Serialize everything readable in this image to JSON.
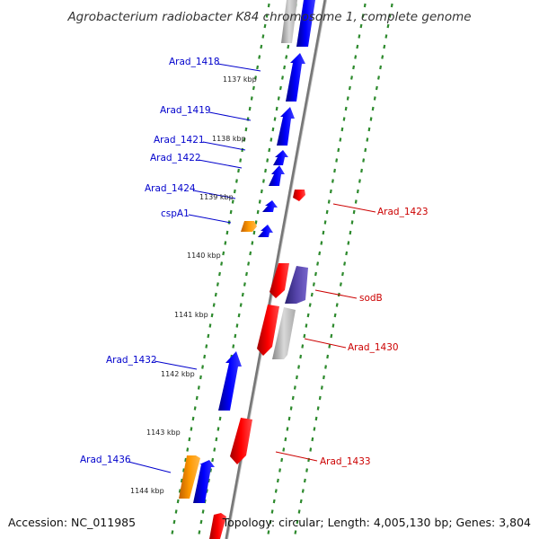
{
  "title": "Agrobacterium radiobacter K84 chromosome 1, complete genome",
  "accession": "Accession: NC_011985",
  "topology": "Topology: circular; Length: 4,005,130 bp; Genes: 3,804",
  "colors": {
    "forward_label": "#0000cc",
    "reverse_label": "#cc0000",
    "forward_cds": "#0000ff",
    "reverse_cds": "#ff0000",
    "rna_or_other": "#ff9900",
    "pseudo": "#b0b0b0",
    "special": "#5544aa",
    "tick": "#2d8a2d",
    "backbone": "#888888"
  },
  "kbp_markers": [
    "1137 kbp",
    "1138 kbp",
    "1139 kbp",
    "1140 kbp",
    "1141 kbp",
    "1142 kbp",
    "1143 kbp",
    "1144 kbp"
  ],
  "forward_labels": [
    "Arad_1418",
    "Arad_1419",
    "Arad_1421",
    "Arad_1422",
    "Arad_1424",
    "cspA1",
    "Arad_1432",
    "Arad_1436"
  ],
  "reverse_labels": [
    "Arad_1423",
    "sodB",
    "Arad_1430",
    "Arad_1433"
  ]
}
